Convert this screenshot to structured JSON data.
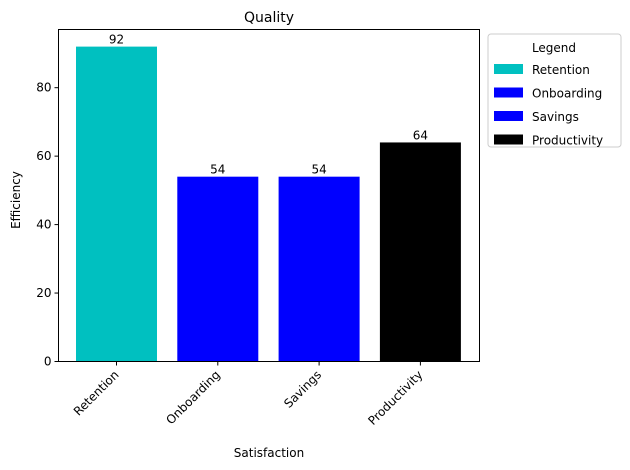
{
  "chart_data": {
    "type": "bar",
    "title": "Quality",
    "xlabel": "Satisfaction",
    "ylabel": "Efficiency",
    "categories": [
      "Retention",
      "Onboarding",
      "Savings",
      "Productivity"
    ],
    "values": [
      92,
      54,
      54,
      64
    ],
    "colors": [
      "#00c0c0",
      "#0000ff",
      "#0000ff",
      "#000000"
    ],
    "ylim": [
      0,
      97
    ],
    "yticks": [
      0,
      20,
      40,
      60,
      80
    ],
    "grid": false,
    "legend": {
      "title": "Legend",
      "placement": "outside-right",
      "entries": [
        "Retention",
        "Onboarding",
        "Savings",
        "Productivity"
      ]
    }
  }
}
